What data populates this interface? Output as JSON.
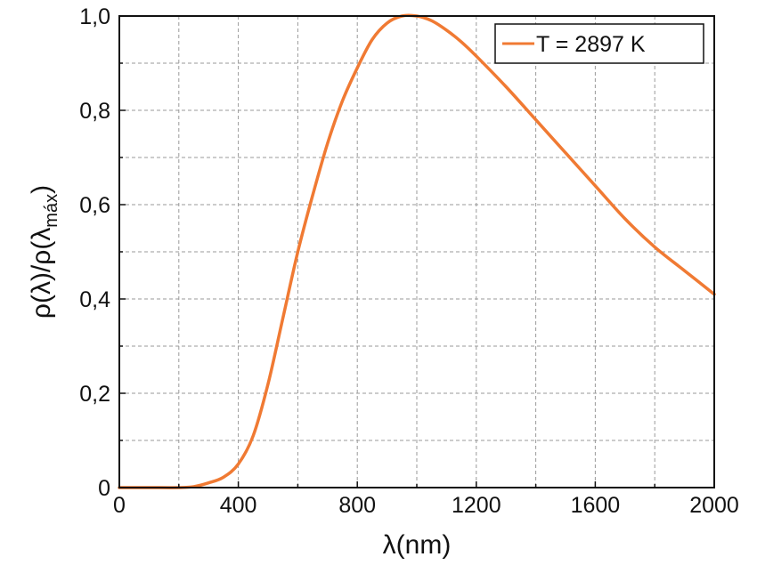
{
  "chart_data": {
    "type": "line",
    "x_label": "λ(nm)",
    "y_label": {
      "main": "ρ(λ)/ρ(λ",
      "sub": "máx",
      "close": ")"
    },
    "x_range": [
      0,
      2000
    ],
    "y_range": [
      0,
      1.0
    ],
    "x_ticks": [
      {
        "value": 0,
        "label": "0"
      },
      {
        "value": 400,
        "label": "400"
      },
      {
        "value": 800,
        "label": "800"
      },
      {
        "value": 1200,
        "label": "1200"
      },
      {
        "value": 1600,
        "label": "1600"
      },
      {
        "value": 2000,
        "label": "2000"
      }
    ],
    "y_ticks": [
      {
        "value": 0,
        "label": "0"
      },
      {
        "value": 0.2,
        "label": "0,2"
      },
      {
        "value": 0.4,
        "label": "0,4"
      },
      {
        "value": 0.6,
        "label": "0,6"
      },
      {
        "value": 0.8,
        "label": "0,8"
      },
      {
        "value": 1.0,
        "label": "1,0"
      }
    ],
    "grid": true,
    "grid_style": "dashed",
    "x_minor_ticks": [
      200,
      600,
      1000,
      1400,
      1800
    ],
    "y_minor_ticks": [
      0.1,
      0.3,
      0.5,
      0.7,
      0.9
    ],
    "legend_position": "top-right",
    "series": [
      {
        "name": "T = 2897 K",
        "color": "#f07a33",
        "x": [
          0,
          100,
          200,
          250,
          300,
          350,
          400,
          450,
          500,
          550,
          600,
          650,
          700,
          750,
          800,
          850,
          900,
          950,
          1000,
          1050,
          1100,
          1150,
          1200,
          1300,
          1400,
          1500,
          1600,
          1700,
          1800,
          1900,
          2000
        ],
        "y": [
          0,
          0,
          0,
          0.002,
          0.01,
          0.022,
          0.05,
          0.11,
          0.22,
          0.36,
          0.5,
          0.62,
          0.73,
          0.82,
          0.89,
          0.95,
          0.985,
          1.0,
          1.0,
          0.99,
          0.97,
          0.945,
          0.915,
          0.85,
          0.78,
          0.71,
          0.64,
          0.57,
          0.51,
          0.46,
          0.41
        ]
      }
    ]
  }
}
